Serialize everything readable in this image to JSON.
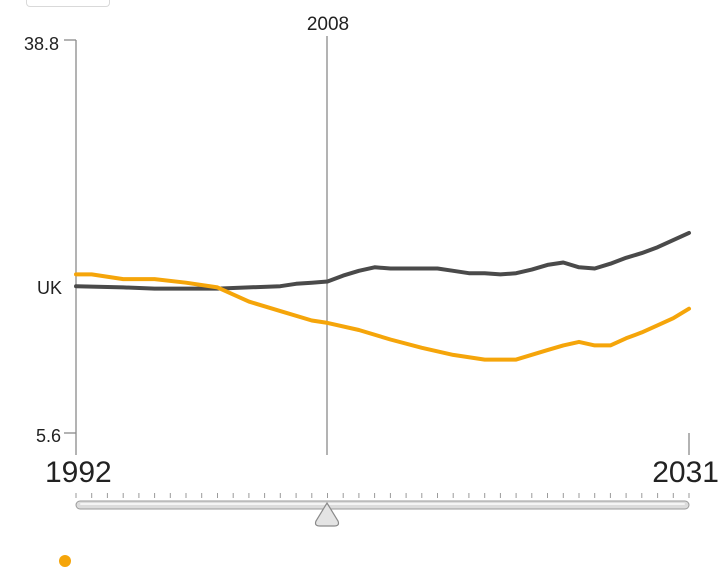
{
  "chart_data": {
    "type": "line",
    "title": "",
    "xlabel": "",
    "ylabel": "",
    "xlim": [
      1992,
      2031
    ],
    "ylim": [
      5.6,
      38.8
    ],
    "y_tick_labels": [
      "38.8",
      "5.6"
    ],
    "x_tick_labels": [
      "1992",
      "2031"
    ],
    "marker_year": "2008",
    "row_label": "UK",
    "grid": false,
    "series": [
      {
        "color": "#4a4a4a",
        "x": [
          1992,
          1995,
          1997,
          1999,
          2001,
          2003,
          2005,
          2006,
          2007,
          2008,
          2009,
          2010,
          2011,
          2012,
          2013,
          2014,
          2015,
          2016,
          2017,
          2018,
          2019,
          2020,
          2021,
          2022,
          2023,
          2024,
          2025,
          2026,
          2027,
          2028,
          2029,
          2030,
          2031
        ],
        "values": [
          18.0,
          17.9,
          17.8,
          17.8,
          17.8,
          17.9,
          18.0,
          18.2,
          18.3,
          18.4,
          18.9,
          19.3,
          19.6,
          19.5,
          19.5,
          19.5,
          19.5,
          19.3,
          19.1,
          19.1,
          19.0,
          19.1,
          19.4,
          19.8,
          20.0,
          19.6,
          19.5,
          19.9,
          20.4,
          20.8,
          21.3,
          21.9,
          22.5
        ]
      },
      {
        "color": "#f5a50a",
        "x": [
          1992,
          1993,
          1995,
          1997,
          1999,
          2001,
          2003,
          2005,
          2007,
          2008,
          2010,
          2012,
          2014,
          2016,
          2018,
          2020,
          2022,
          2023,
          2024,
          2025,
          2026,
          2027,
          2028,
          2029,
          2030,
          2031
        ],
        "values": [
          19.0,
          19.0,
          18.6,
          18.6,
          18.3,
          17.9,
          16.7,
          15.9,
          15.1,
          14.9,
          14.3,
          13.5,
          12.8,
          12.2,
          11.8,
          11.8,
          12.6,
          13.0,
          13.3,
          13.0,
          13.0,
          13.6,
          14.1,
          14.7,
          15.3,
          16.1
        ]
      }
    ]
  },
  "legend": {
    "dot_color": "#f5a50a"
  }
}
